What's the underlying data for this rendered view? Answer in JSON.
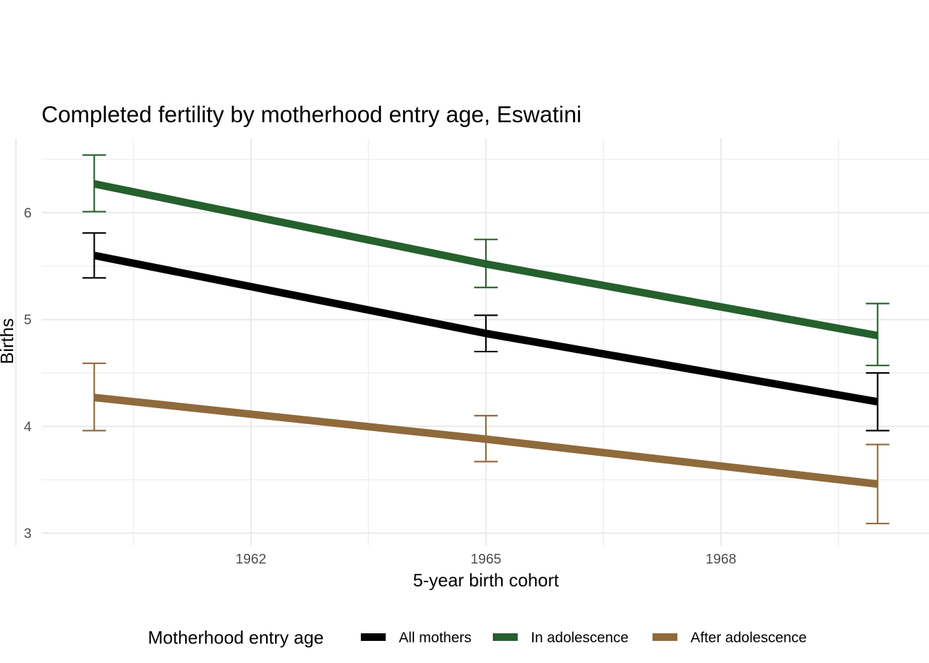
{
  "chart_data": {
    "type": "line",
    "title": "Completed fertility by motherhood entry age,  Eswatini",
    "xlabel": "5-year birth cohort",
    "ylabel": "Births",
    "x": [
      1960,
      1965,
      1970
    ],
    "xlim": [
      1958.8,
      1970.6
    ],
    "ylim": [
      2.95,
      6.65
    ],
    "x_ticks": [
      1962,
      1965,
      1968
    ],
    "x_tick_labels": [
      "1962",
      "1965",
      "1968"
    ],
    "y_ticks": [
      3,
      4,
      5,
      6
    ],
    "y_tick_labels": [
      "3",
      "4",
      "5",
      "6"
    ],
    "grid": true,
    "legend": {
      "title": "Motherhood entry age",
      "position": "bottom"
    },
    "series": [
      {
        "name": "All mothers",
        "color": "#000000",
        "values": [
          5.6,
          4.87,
          4.23
        ],
        "lower": [
          5.39,
          4.7,
          3.96
        ],
        "upper": [
          5.81,
          5.04,
          4.5
        ]
      },
      {
        "name": "In adolescence",
        "color": "#25602d",
        "values": [
          6.27,
          5.52,
          4.85
        ],
        "lower": [
          6.01,
          5.3,
          4.57
        ],
        "upper": [
          6.54,
          5.75,
          5.15
        ]
      },
      {
        "name": "After adolescence",
        "color": "#8f6a3b",
        "values": [
          4.27,
          3.88,
          3.46
        ],
        "lower": [
          3.96,
          3.67,
          3.09
        ],
        "upper": [
          4.59,
          4.1,
          3.83
        ]
      }
    ]
  }
}
